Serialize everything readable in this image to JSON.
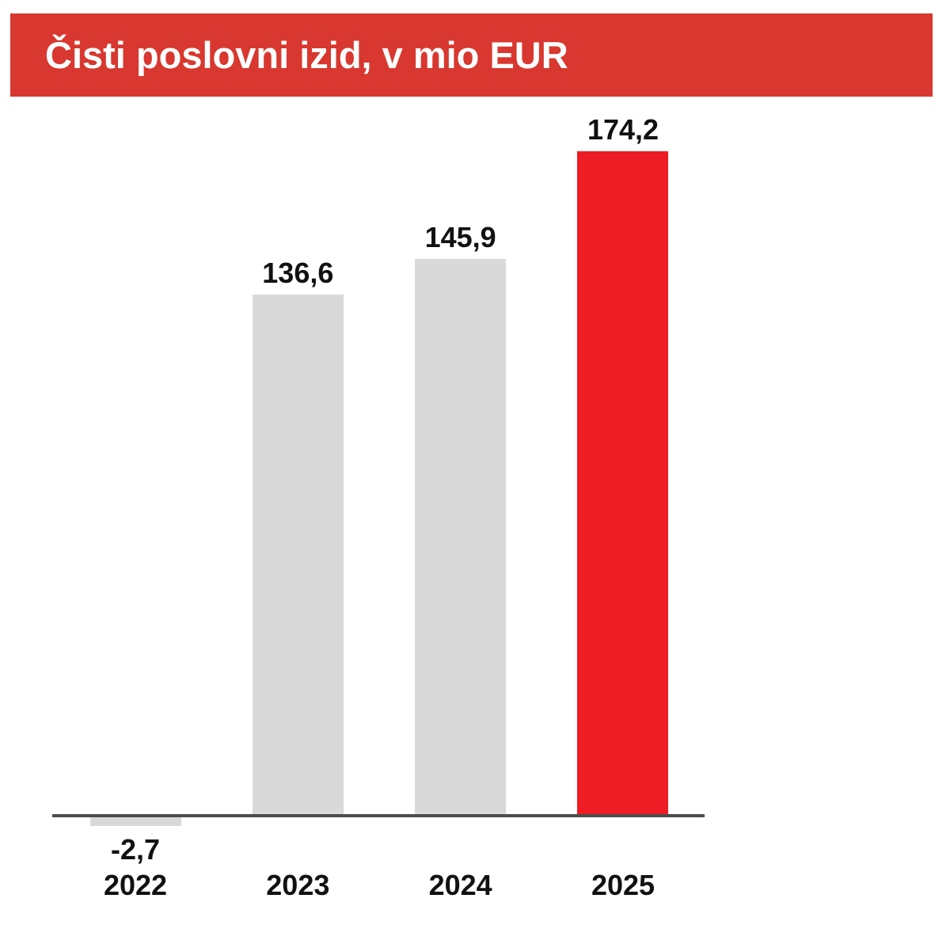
{
  "header": {
    "title": "Čisti poslovni izid, v mio EUR",
    "background_color": "#D8382F",
    "text_color": "#FFFFFF"
  },
  "chart_data": {
    "type": "bar",
    "title": "Čisti poslovni izid, v mio EUR",
    "unit": "mio EUR",
    "categories": [
      "2022",
      "2023",
      "2024",
      "2025"
    ],
    "values": [
      -2.7,
      136.6,
      145.9,
      174.2
    ],
    "value_labels": [
      "-2,7",
      "136,6",
      "145,9",
      "174,2"
    ],
    "bar_colors": [
      "#D9D9D9",
      "#D9D9D9",
      "#D9D9D9",
      "#EE1C25"
    ],
    "default_bar_color": "#D9D9D9",
    "highlight_category": "2025",
    "highlight_color": "#EE1C25",
    "axis_color": "#4D4D4D",
    "label_color": "#111111",
    "xlabel": "",
    "ylabel": "",
    "ylim": [
      -10,
      185
    ],
    "grid": false,
    "legend": false,
    "baseline": 0
  }
}
